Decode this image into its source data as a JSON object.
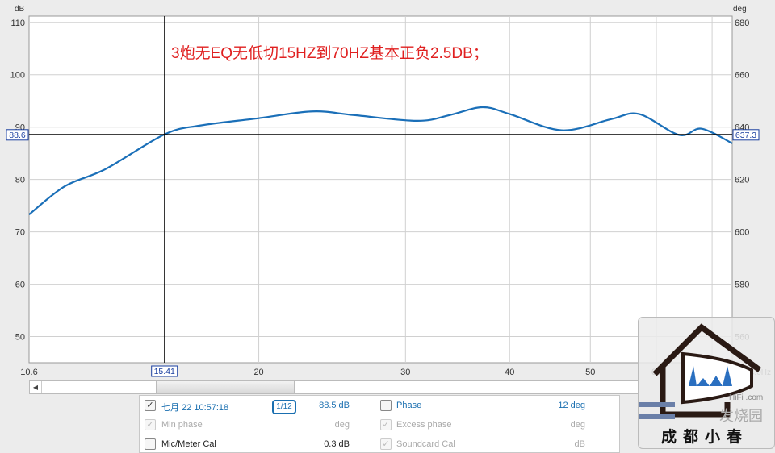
{
  "chart_data": {
    "type": "line",
    "title": "3炮无EQ无低切15HZ到70HZ基本正负2.5DB；",
    "ylabel": "dB",
    "y2label": "deg",
    "xscale": "log",
    "xlim": [
      10.6,
      74.0
    ],
    "ylim": [
      45,
      111.2
    ],
    "y2lim": [
      550,
      682.4
    ],
    "xticks": [
      "10.6",
      "20",
      "30",
      "40",
      "50",
      "60",
      "70"
    ],
    "xgrid": [
      20,
      30,
      40,
      50,
      60,
      70
    ],
    "yticks": [
      50,
      60,
      70,
      80,
      90,
      100,
      110
    ],
    "y2ticks": [
      560,
      580,
      600,
      620,
      640,
      660,
      680
    ],
    "grid": true,
    "color": "#1a6fb8",
    "series": [
      {
        "x": [
          10.6,
          11.7,
          13.1,
          15.41,
          17.0,
          20,
          23.2,
          26,
          31,
          33.9,
          37.1,
          40,
          46.2,
          52.9,
          57.2,
          63.9,
          68,
          74
        ],
        "values": [
          73.3,
          78.7,
          82,
          88.6,
          90.3,
          91.7,
          93,
          92.3,
          91.2,
          92.3,
          93.8,
          92.5,
          89.4,
          91.5,
          92.5,
          88.5,
          89.7,
          86.9
        ]
      }
    ],
    "cursor": {
      "x": "15.41",
      "y": "88.6",
      "y2": "637.3",
      "xend": "74.0Hz"
    }
  },
  "legend": {
    "rows": [
      {
        "check": true,
        "label": "七月 22 10:57:18",
        "smoothing": "1/12",
        "value": "88.5 dB",
        "check2": false,
        "label2": "Phase",
        "value2": "12 deg"
      },
      {
        "check": true,
        "label": "Min phase",
        "value": "deg",
        "check2": true,
        "label2": "Excess phase",
        "value2": "deg"
      },
      {
        "check": false,
        "label": "Mic/Meter Cal",
        "value": "0.3 dB",
        "check2": true,
        "label2": "Soundcard Cal",
        "value2": "dB"
      }
    ]
  },
  "watermark": {
    "text": "成都小春",
    "site": "HiFi   .com",
    "site2": "发烧园"
  }
}
